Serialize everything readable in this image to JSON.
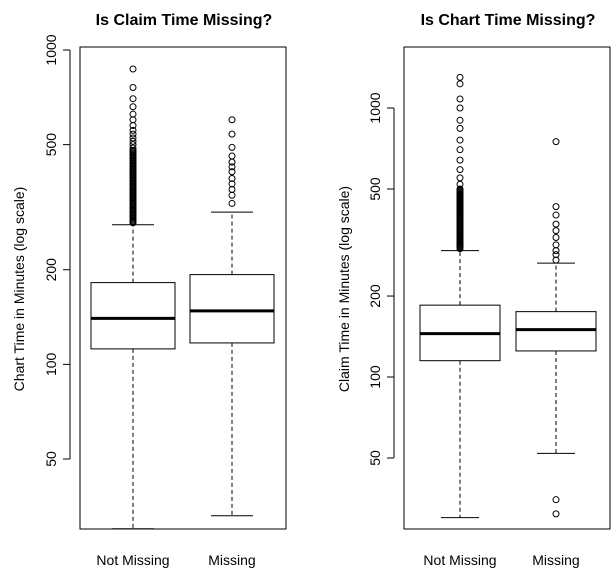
{
  "chart_data": [
    {
      "type": "boxplot",
      "title": "Is Claim Time Missing?",
      "xlabel": "",
      "ylabel": "Chart Time in Minutes (log scale)",
      "yscale": "log",
      "ylim": [
        29,
        1000
      ],
      "yticks": [
        50,
        100,
        200,
        500,
        1000
      ],
      "categories": [
        "Not Missing",
        "Missing"
      ],
      "boxes": [
        {
          "label": "Not Missing",
          "q1": 112,
          "median": 140,
          "q3": 182,
          "whisker_low": 30,
          "whisker_high": 278,
          "outlier_band": [
            282,
            480
          ],
          "outliers": [
            488,
            500,
            512,
            525,
            540,
            555,
            575,
            600,
            625,
            660,
            700,
            760,
            870
          ]
        },
        {
          "label": "Missing",
          "q1": 117,
          "median": 148,
          "q3": 193,
          "whisker_low": 33,
          "whisker_high": 305,
          "outliers": [
            325,
            345,
            360,
            375,
            390,
            410,
            425,
            440,
            460,
            490,
            540,
            600
          ]
        }
      ]
    },
    {
      "type": "boxplot",
      "title": "Is Chart Time Missing?",
      "xlabel": "",
      "ylabel": "Claim Time in Minutes (log scale)",
      "yscale": "log",
      "ylim": [
        30,
        1400
      ],
      "yticks": [
        50,
        100,
        200,
        500,
        1000
      ],
      "categories": [
        "Not Missing",
        "Missing"
      ],
      "boxes": [
        {
          "label": "Not Missing",
          "q1": 115,
          "median": 145,
          "q3": 185,
          "whisker_low": 30,
          "whisker_high": 295,
          "outlier_band": [
            300,
            500
          ],
          "outliers": [
            520,
            550,
            590,
            640,
            700,
            760,
            840,
            900,
            1000,
            1080,
            1230,
            1300
          ]
        },
        {
          "label": "Missing",
          "q1": 125,
          "median": 150,
          "q3": 175,
          "whisker_low": 52,
          "whisker_high": 265,
          "outliers": [
            272,
            285,
            295,
            310,
            330,
            350,
            370,
            400,
            430,
            750,
            35,
            31
          ]
        }
      ]
    }
  ]
}
